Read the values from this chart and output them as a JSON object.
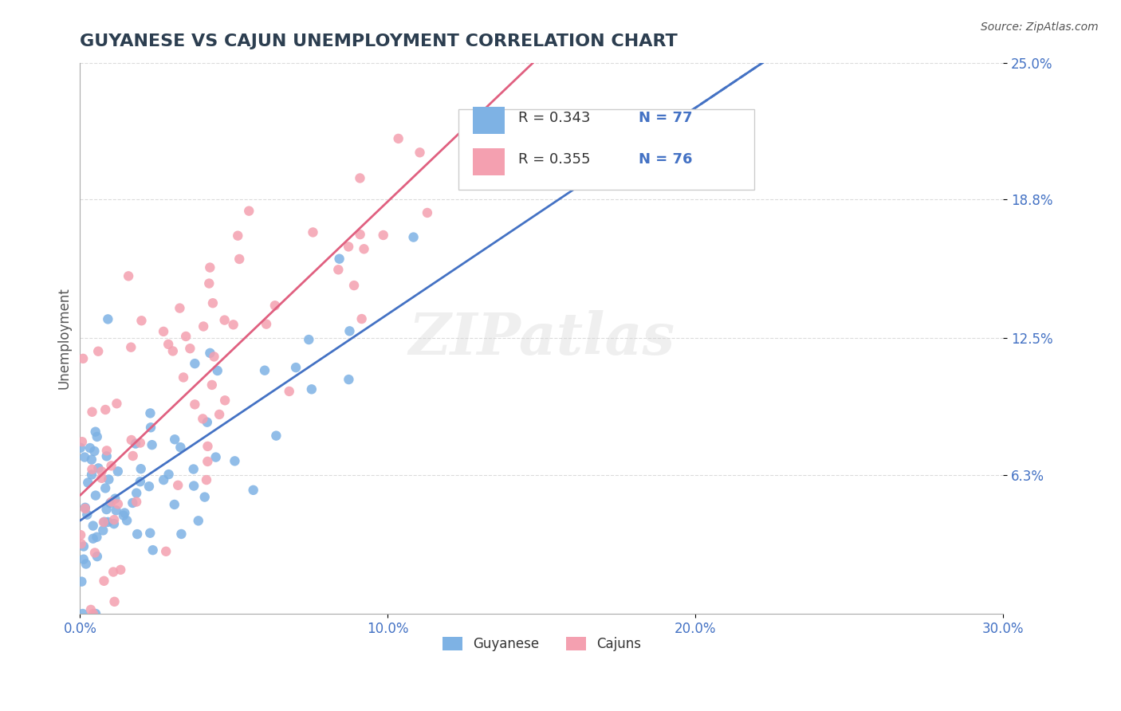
{
  "title": "GUYANESE VS CAJUN UNEMPLOYMENT CORRELATION CHART",
  "source_text": "Source: ZipAtlas.com",
  "xlabel": "",
  "ylabel": "Unemployment",
  "xlim": [
    0,
    0.3
  ],
  "ylim": [
    0,
    0.25
  ],
  "xticks": [
    0.0,
    0.1,
    0.2,
    0.3
  ],
  "xtick_labels": [
    "0.0%",
    "10.0%",
    "20.0%",
    "30.0%"
  ],
  "yticks": [
    0.063,
    0.125,
    0.188,
    0.25
  ],
  "ytick_labels": [
    "6.3%",
    "12.5%",
    "18.8%",
    "25.0%"
  ],
  "guyanese_color": "#7EB2E4",
  "cajun_color": "#F4A0B0",
  "guyanese_line_color": "#4472C4",
  "cajun_line_color": "#E06080",
  "legend_R_guyanese": "R = 0.343",
  "legend_N_guyanese": "N = 77",
  "legend_R_cajun": "R = 0.355",
  "legend_N_cajun": "N = 76",
  "watermark": "ZIPatlas",
  "background_color": "#FFFFFF",
  "grid_color": "#CCCCCC",
  "title_color": "#2C3E50",
  "axis_label_color": "#4472C4",
  "guyanese_R": 0.343,
  "cajun_R": 0.355,
  "guyanese_N": 77,
  "cajun_N": 76,
  "seed": 42
}
